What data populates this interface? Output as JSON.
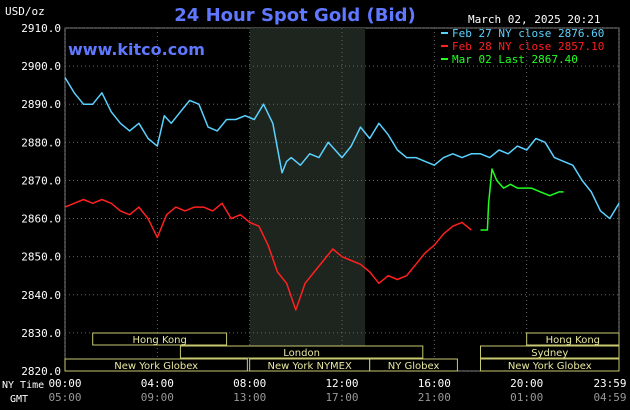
{
  "chart_data": {
    "type": "line",
    "title": "24 Hour Spot Gold (Bid)",
    "site": "www.kitco.com",
    "date_label": "March 02, 2025 20:21",
    "yunit": "USD/oz",
    "ylim": [
      2820,
      2910
    ],
    "y_ticks": [
      "2910.0",
      "2900.0",
      "2890.0",
      "2880.0",
      "2870.0",
      "2860.0",
      "2850.0",
      "2840.0",
      "2830.0",
      "2820.0"
    ],
    "x_ticks_ny": [
      "00:00",
      "04:00",
      "08:00",
      "12:00",
      "16:00",
      "20:00",
      "23:59"
    ],
    "x_ticks_gmt": [
      "05:00",
      "09:00",
      "13:00",
      "17:00",
      "21:00",
      "01:00",
      "04:59"
    ],
    "x_row_labels": {
      "ny": "NY Time",
      "gmt": "GMT"
    },
    "shaded_region_hours": [
      8.0,
      13.0
    ],
    "legend": [
      {
        "text": "Feb 27 NY close 2876.60",
        "color": "#5ad2ff"
      },
      {
        "text": "Feb 28 NY close 2857.10",
        "color": "#ff2020"
      },
      {
        "text": "Mar 02 Last 2867.40",
        "color": "#20ff20"
      }
    ],
    "series": [
      {
        "name": "Feb 27 NY close",
        "color": "#5ad2ff",
        "x": [
          0,
          0.4,
          0.8,
          1.2,
          1.6,
          2.0,
          2.4,
          2.8,
          3.2,
          3.6,
          4.0,
          4.3,
          4.6,
          5.0,
          5.4,
          5.8,
          6.2,
          6.6,
          7.0,
          7.4,
          7.8,
          8.2,
          8.6,
          9.0,
          9.4,
          9.6,
          9.8,
          10.2,
          10.6,
          11.0,
          11.4,
          12.0,
          12.4,
          12.8,
          13.2,
          13.6,
          14.0,
          14.4,
          14.8,
          15.2,
          15.6,
          16.0,
          16.4,
          16.8,
          17.2,
          17.6,
          18.0,
          18.4,
          18.8,
          19.2,
          19.6,
          20.0,
          20.4,
          20.8,
          21.2,
          21.6,
          22.0,
          22.4,
          22.8,
          23.2,
          23.6,
          24.0
        ],
        "values": [
          2897,
          2893,
          2890,
          2890,
          2893,
          2888,
          2885,
          2883,
          2885,
          2881,
          2879,
          2887,
          2885,
          2888,
          2891,
          2890,
          2884,
          2883,
          2886,
          2886,
          2887,
          2886,
          2890,
          2885,
          2872,
          2875,
          2876,
          2874,
          2877,
          2876,
          2880,
          2876,
          2879,
          2884,
          2881,
          2885,
          2882,
          2878,
          2876,
          2876,
          2875,
          2874,
          2876,
          2877,
          2876,
          2877,
          2877,
          2876,
          2878,
          2877,
          2879,
          2878,
          2881,
          2880,
          2876,
          2875,
          2874,
          2870,
          2867,
          2862,
          2860,
          2864
        ]
      },
      {
        "name": "Feb 28 NY close",
        "color": "#ff2020",
        "x": [
          0,
          0.4,
          0.8,
          1.2,
          1.6,
          2.0,
          2.4,
          2.8,
          3.2,
          3.6,
          4.0,
          4.4,
          4.8,
          5.2,
          5.6,
          6.0,
          6.4,
          6.8,
          7.2,
          7.6,
          8.0,
          8.4,
          8.8,
          9.2,
          9.6,
          10.0,
          10.4,
          10.8,
          11.2,
          11.6,
          12.0,
          12.4,
          12.8,
          13.2,
          13.6,
          14.0,
          14.4,
          14.8,
          15.2,
          15.6,
          16.0,
          16.4,
          16.8,
          17.2,
          17.6
        ],
        "values": [
          2863,
          2864,
          2865,
          2864,
          2865,
          2864,
          2862,
          2861,
          2863,
          2860,
          2855,
          2861,
          2863,
          2862,
          2863,
          2863,
          2862,
          2864,
          2860,
          2861,
          2859,
          2858,
          2853,
          2846,
          2843,
          2836,
          2843,
          2846,
          2849,
          2852,
          2850,
          2849,
          2848,
          2846,
          2843,
          2845,
          2844,
          2845,
          2848,
          2851,
          2853,
          2856,
          2858,
          2859,
          2857
        ]
      },
      {
        "name": "Mar 02 Last",
        "color": "#20ff20",
        "x": [
          18.0,
          18.3,
          18.35,
          18.5,
          18.7,
          19.0,
          19.3,
          19.6,
          19.9,
          20.2,
          20.6,
          21.0,
          21.4,
          21.6
        ],
        "values": [
          2857,
          2857,
          2864,
          2873,
          2870,
          2868,
          2869,
          2868,
          2868,
          2868,
          2867,
          2866,
          2867,
          2867
        ]
      }
    ],
    "market_bands": [
      {
        "label": "Hong Kong",
        "start": 1.2,
        "end": 7.0,
        "row": 0
      },
      {
        "label": "London",
        "start": 5.0,
        "end": 15.5,
        "row": 1
      },
      {
        "label": "New York Globex",
        "start": 0.0,
        "end": 7.9,
        "row": 2
      },
      {
        "label": "New York NYMEX",
        "start": 8.0,
        "end": 13.2,
        "row": 2
      },
      {
        "label": "NY Globex",
        "start": 13.2,
        "end": 17.0,
        "row": 2
      },
      {
        "label": "Hong Kong",
        "start": 20.0,
        "end": 24.0,
        "row": 0
      },
      {
        "label": "Sydney",
        "start": 18.0,
        "end": 24.0,
        "row": 1
      },
      {
        "label": "New York Globex",
        "start": 18.0,
        "end": 24.0,
        "row": 2
      }
    ]
  }
}
